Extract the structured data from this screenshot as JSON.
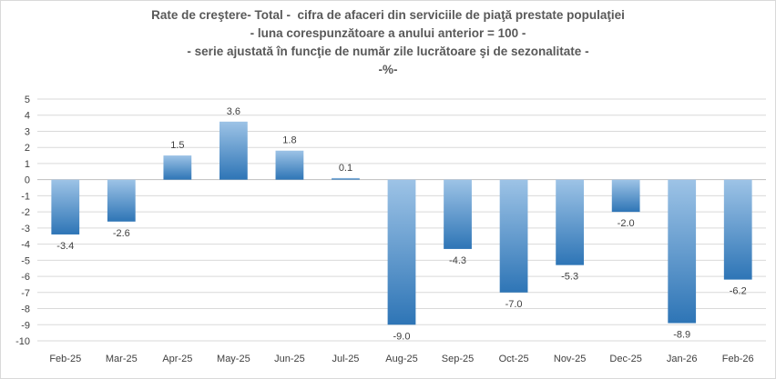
{
  "chart_data": {
    "type": "bar",
    "title_lines": [
      "Rate de creştere- Total -  cifra de afaceri din serviciile de piaţă prestate populaţiei",
      "- luna corespunzătoare a anului anterior = 100 -",
      "- serie ajustată în funcţie de număr zile lucrătoare şi de sezonalitate -",
      "-%-"
    ],
    "xlabel": "",
    "ylabel": "",
    "categories": [
      "Feb-25",
      "Mar-25",
      "Apr-25",
      "May-25",
      "Jun-25",
      "Jul-25",
      "Aug-25",
      "Sep-25",
      "Oct-25",
      "Nov-25",
      "Dec-25",
      "Jan-26",
      "Feb-26"
    ],
    "values": [
      -3.4,
      -2.6,
      1.5,
      3.6,
      1.8,
      0.1,
      -9.0,
      -4.3,
      -7.0,
      -5.3,
      -2.0,
      -8.9,
      -6.2
    ],
    "data_labels": [
      "-3.4",
      "-2.6",
      "1.5",
      "3.6",
      "1.8",
      "0.1",
      "-9.0",
      "-4.3",
      "-7.0",
      "-5.3",
      "-2.0",
      "-8.9",
      "-6.2"
    ],
    "ylim": [
      -10,
      5
    ],
    "y_ticks": [
      5,
      4,
      3,
      2,
      1,
      0,
      -1,
      -2,
      -3,
      -4,
      -5,
      -6,
      -7,
      -8,
      -9,
      -10
    ],
    "grid": true,
    "legend": "none",
    "colors": {
      "bar_top": "#9dc3e6",
      "bar_bottom": "#2e75b6",
      "grid": "#d9d9d9",
      "axis": "#bfbfbf",
      "text": "#404040",
      "title": "#595959"
    }
  }
}
